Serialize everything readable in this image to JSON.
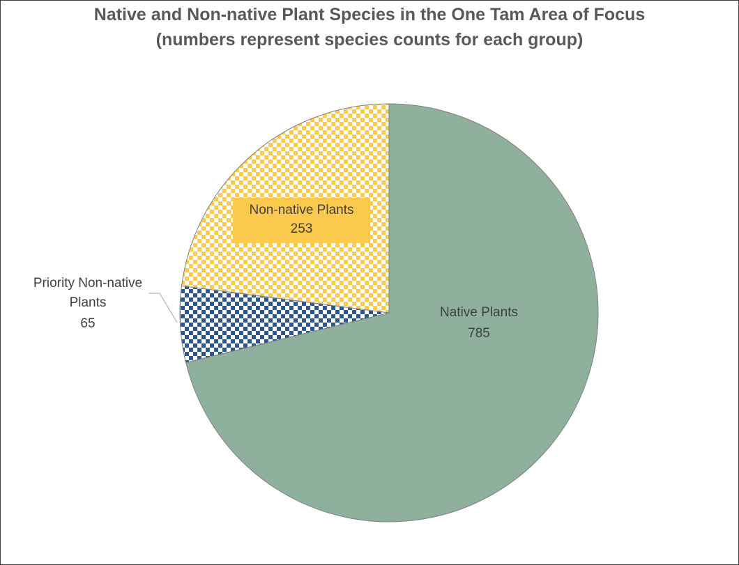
{
  "chart_data": {
    "type": "pie",
    "title": "Native and Non-native Plant Species in the One Tam Area of Focus",
    "subtitle": "(numbers represent species counts for each group)",
    "categories": [
      "Native Plants",
      "Priority Non-native Plants",
      "Non-native Plants"
    ],
    "values": [
      785,
      65,
      253
    ],
    "colors": [
      "#8fb09c",
      "#2e5596",
      "#fbc94e"
    ],
    "patterns": [
      "solid",
      "checker",
      "checker"
    ]
  }
}
